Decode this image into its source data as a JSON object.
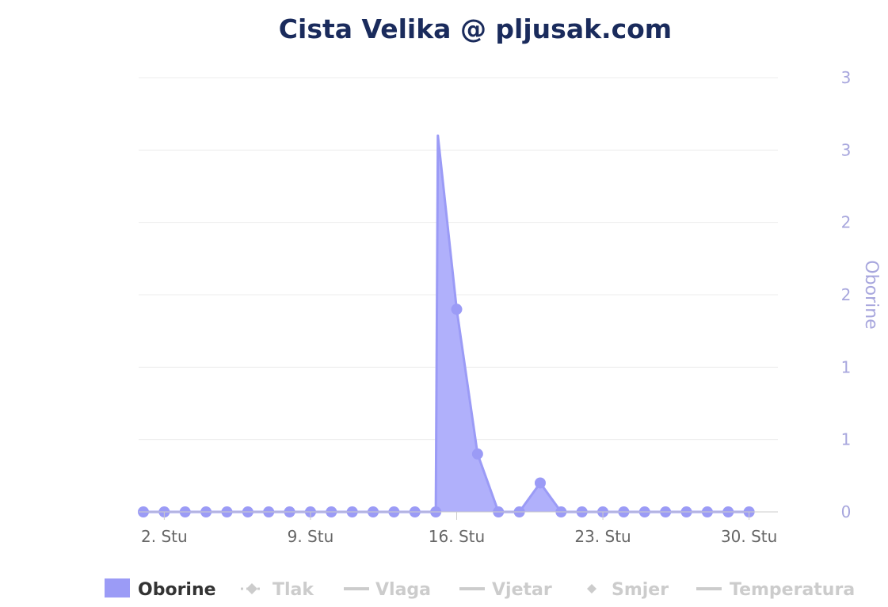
{
  "chart_data": {
    "type": "area",
    "title": "Cista Velika @ pljusak.com",
    "ylabel": "Oborine",
    "xlabel": "",
    "x_tick_labels": [
      {
        "day": 2,
        "label": "2. Stu"
      },
      {
        "day": 9,
        "label": "9. Stu"
      },
      {
        "day": 16,
        "label": "16. Stu"
      },
      {
        "day": 23,
        "label": "23. Stu"
      },
      {
        "day": 30,
        "label": "30. Stu"
      }
    ],
    "y_ticks": [
      {
        "value": 0,
        "label": "0"
      },
      {
        "value": 0.5,
        "label": "1"
      },
      {
        "value": 1,
        "label": "1"
      },
      {
        "value": 1.5,
        "label": "2"
      },
      {
        "value": 2,
        "label": "2"
      },
      {
        "value": 2.5,
        "label": "3"
      },
      {
        "value": 3,
        "label": "3"
      }
    ],
    "ylim": [
      0,
      3
    ],
    "xlim": [
      1,
      31
    ],
    "grid": true,
    "legend_placement": "bottom",
    "series": [
      {
        "name": "Oborine",
        "color": "#9b9bf6",
        "x": [
          1,
          2,
          3,
          4,
          5,
          6,
          7,
          8,
          9,
          10,
          11,
          12,
          13,
          14,
          15,
          15.1,
          16,
          17,
          18,
          19,
          20,
          21,
          22,
          23,
          24,
          25,
          26,
          27,
          28,
          29,
          30
        ],
        "values": [
          0,
          0,
          0,
          0,
          0,
          0,
          0,
          0,
          0,
          0,
          0,
          0,
          0,
          0,
          0,
          2.6,
          1.4,
          0.4,
          0,
          0,
          0.2,
          0,
          0,
          0,
          0,
          0,
          0,
          0,
          0,
          0,
          0
        ]
      }
    ]
  },
  "legend": [
    {
      "name": "Oborine",
      "active": true,
      "color": "#9b9bf6",
      "symbol": "area"
    },
    {
      "name": "Tlak",
      "active": false,
      "color": "#cccccc",
      "symbol": "dotted-diamond"
    },
    {
      "name": "Vlaga",
      "active": false,
      "color": "#cccccc",
      "symbol": "line"
    },
    {
      "name": "Vjetar",
      "active": false,
      "color": "#cccccc",
      "symbol": "line"
    },
    {
      "name": "Smjer",
      "active": false,
      "color": "#cccccc",
      "symbol": "diamond"
    },
    {
      "name": "Temperatura",
      "active": false,
      "color": "#cccccc",
      "symbol": "line"
    }
  ],
  "colors": {
    "title": "#1a2b5c",
    "series": "#9b9bf6",
    "area_fill": "#b0b0fb",
    "axis_label": "#a7a6dd",
    "x_tick": "#666666",
    "grid": "#ececec",
    "legend_active_text": "#333333",
    "legend_inactive_text": "#cccccc"
  }
}
